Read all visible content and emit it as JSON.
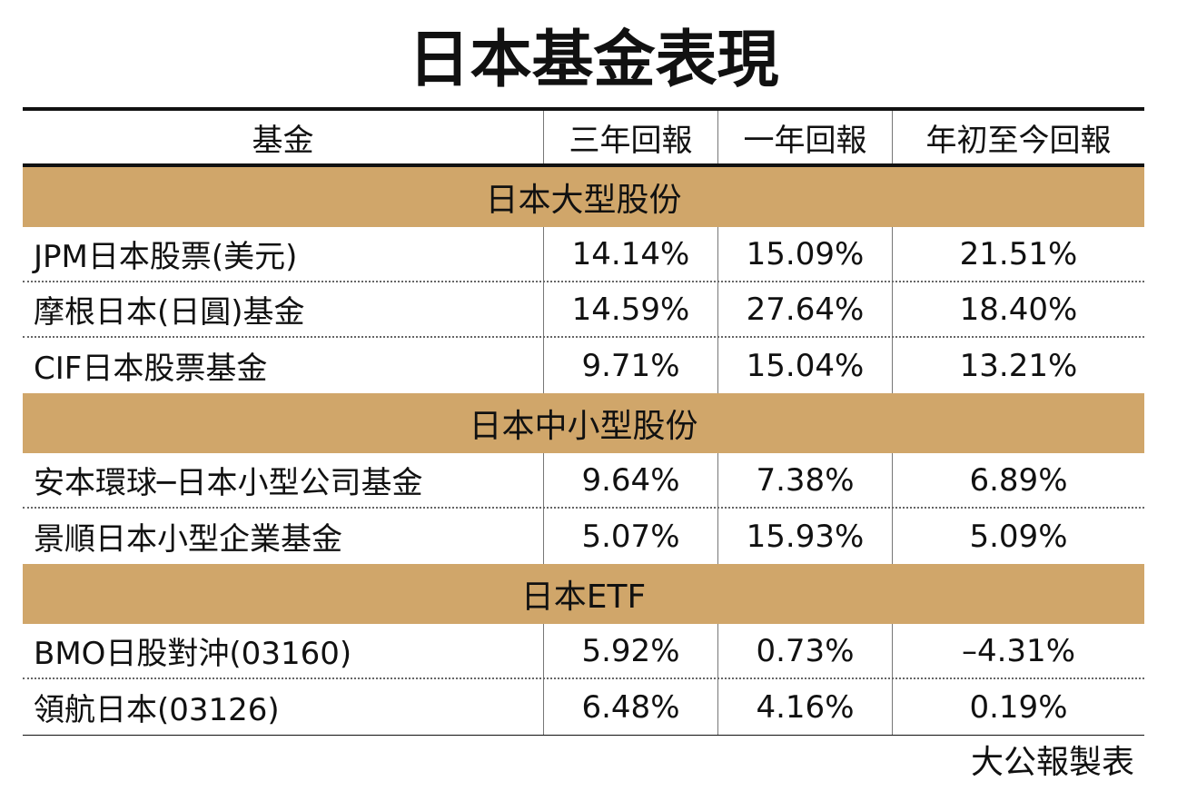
{
  "title": "日本基金表現",
  "header": [
    "基金",
    "三年回報",
    "一年回報",
    "年初至今回報"
  ],
  "sections": [
    {
      "name": "日本大型股份",
      "rows": [
        [
          "JPM日本股票(美元)",
          "14.14%",
          "15.09%",
          "21.51%"
        ],
        [
          "摩根日本(日圓)基金",
          "14.59%",
          "27.64%",
          "18.40%"
        ],
        [
          "CIF日本股票基金",
          "9.71%",
          "15.04%",
          "13.21%"
        ]
      ]
    },
    {
      "name": "日本中小型股份",
      "rows": [
        [
          "安本環球─日本小型公司基金",
          "9.64%",
          "7.38%",
          "6.89%"
        ],
        [
          "景順日本小型企業基金",
          "5.07%",
          "15.93%",
          "5.09%"
        ]
      ]
    },
    {
      "name": "日本ETF",
      "rows": [
        [
          "BMO日股對沖(03160)",
          "5.92%",
          "0.73%",
          "–4.31%"
        ],
        [
          "領航日本(03126)",
          "6.48%",
          "4.16%",
          "0.19%"
        ]
      ]
    }
  ],
  "note": "大公報製表"
}
